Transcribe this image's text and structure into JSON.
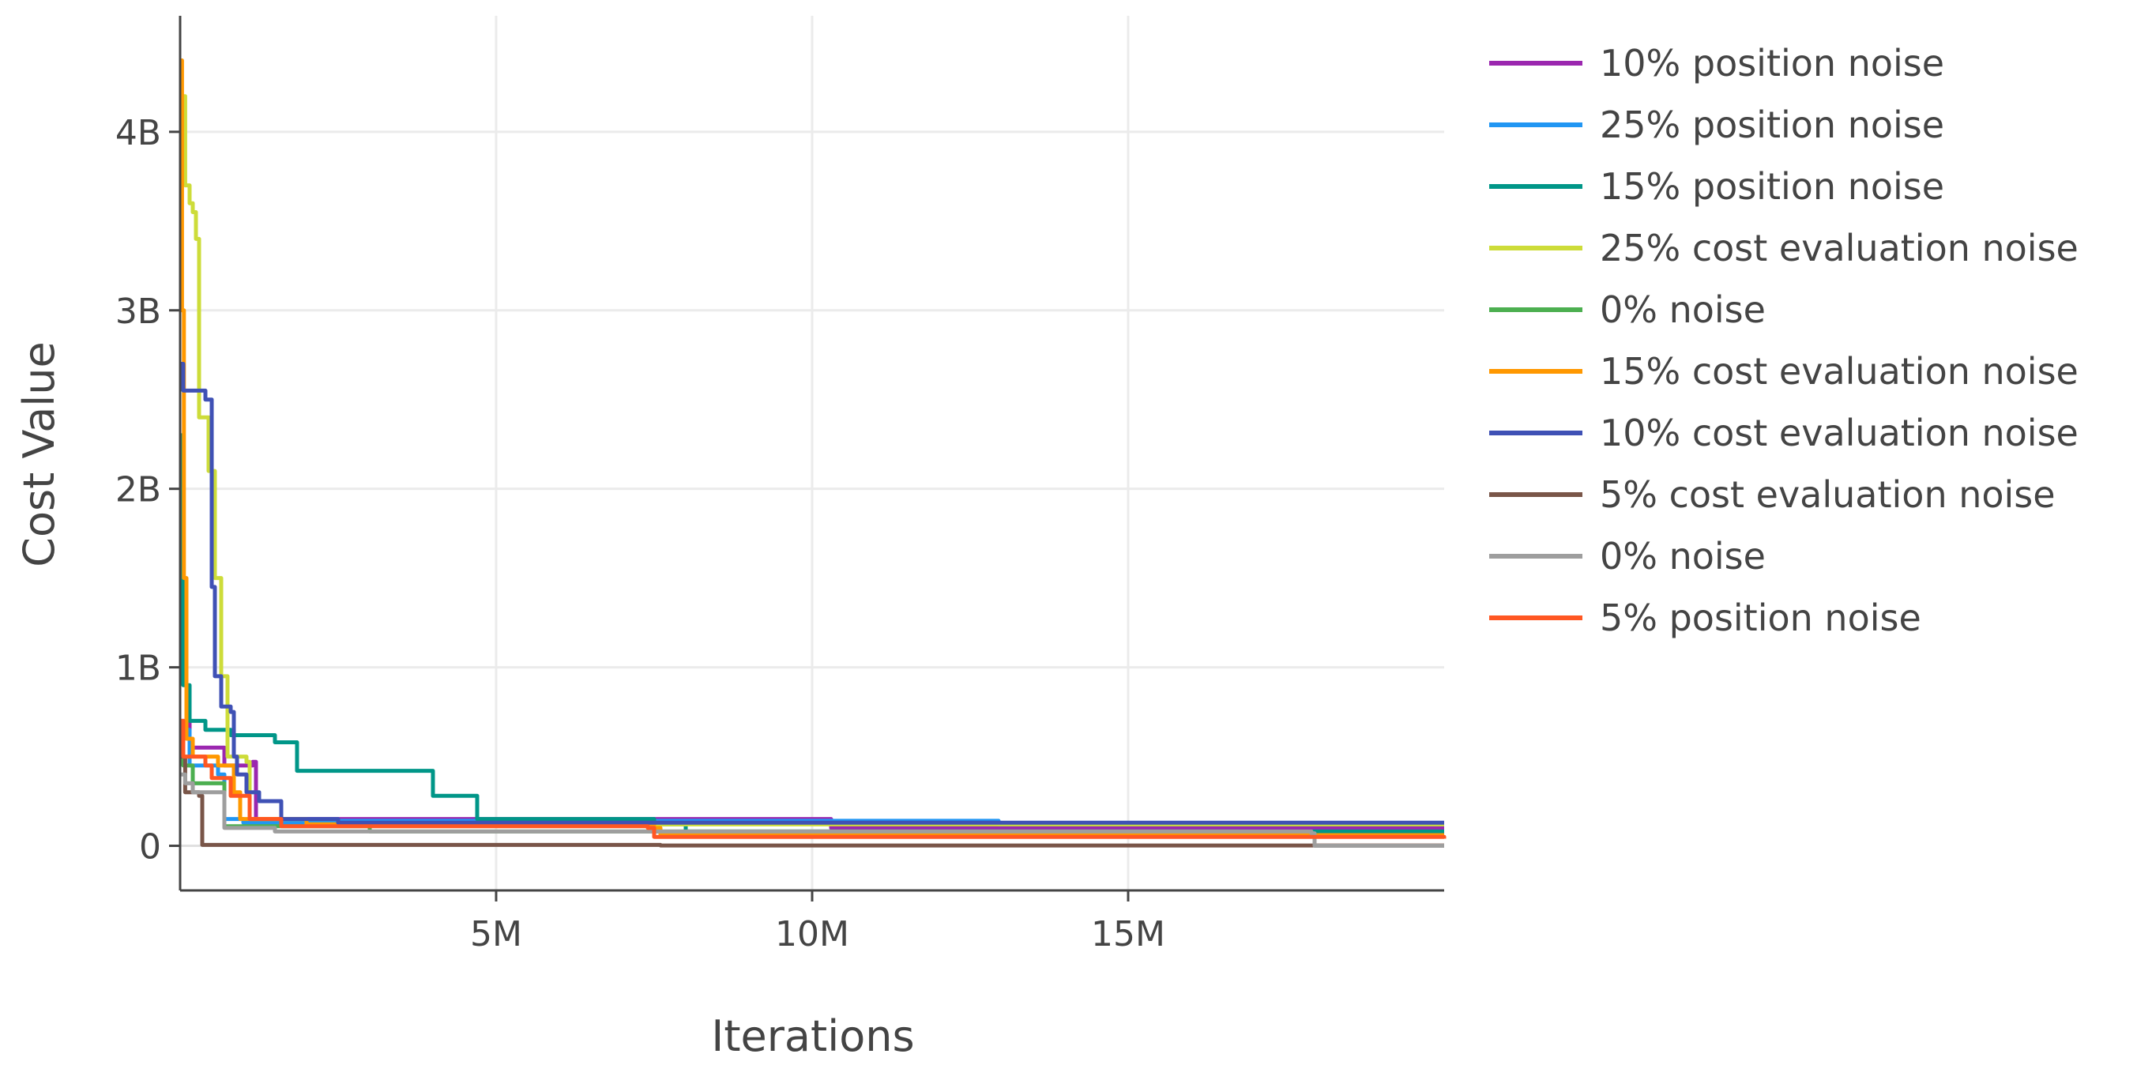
{
  "chart_data": {
    "type": "line",
    "title": "",
    "xlabel": "Iterations",
    "ylabel": "Cost Value",
    "xlim": [
      0,
      20000000
    ],
    "ylim": [
      -250000000,
      4650000000
    ],
    "x_ticks": [
      {
        "value": 5000000,
        "label": "5M"
      },
      {
        "value": 10000000,
        "label": "10M"
      },
      {
        "value": 15000000,
        "label": "15M"
      }
    ],
    "y_ticks": [
      {
        "value": 0,
        "label": "0"
      },
      {
        "value": 1000000000,
        "label": "1B"
      },
      {
        "value": 2000000000,
        "label": "2B"
      },
      {
        "value": 3000000000,
        "label": "3B"
      },
      {
        "value": 4000000000,
        "label": "4B"
      }
    ],
    "grid": true,
    "legend_position": "right",
    "series": [
      {
        "name": "10% position noise",
        "color": "#9b27af",
        "step": true,
        "points": [
          [
            0,
            700000000
          ],
          [
            150000,
            550000000
          ],
          [
            700000,
            450000000
          ],
          [
            1150000,
            470000000
          ],
          [
            1200000,
            150000000
          ],
          [
            2000000,
            150000000
          ],
          [
            10250000,
            150000000
          ],
          [
            10300000,
            100000000
          ],
          [
            20000000,
            100000000
          ]
        ]
      },
      {
        "name": "25% position noise",
        "color": "#2196f3",
        "step": true,
        "points": [
          [
            0,
            650000000
          ],
          [
            150000,
            450000000
          ],
          [
            600000,
            400000000
          ],
          [
            700000,
            150000000
          ],
          [
            1000000,
            130000000
          ],
          [
            2000000,
            140000000
          ],
          [
            12900000,
            140000000
          ],
          [
            12950000,
            120000000
          ],
          [
            20000000,
            120000000
          ]
        ]
      },
      {
        "name": "15% position noise",
        "color": "#009688",
        "step": true,
        "points": [
          [
            0,
            2300000000
          ],
          [
            50000,
            900000000
          ],
          [
            150000,
            700000000
          ],
          [
            400000,
            650000000
          ],
          [
            800000,
            620000000
          ],
          [
            1500000,
            580000000
          ],
          [
            1850000,
            420000000
          ],
          [
            4000000,
            280000000
          ],
          [
            4700000,
            150000000
          ],
          [
            7500000,
            120000000
          ],
          [
            8000000,
            80000000
          ],
          [
            20000000,
            80000000
          ]
        ]
      },
      {
        "name": "25% cost evaluation noise",
        "color": "#cddc39",
        "step": true,
        "points": [
          [
            0,
            4200000000
          ],
          [
            80000,
            3700000000
          ],
          [
            150000,
            3600000000
          ],
          [
            200000,
            3550000000
          ],
          [
            250000,
            3400000000
          ],
          [
            300000,
            2400000000
          ],
          [
            450000,
            2100000000
          ],
          [
            550000,
            1500000000
          ],
          [
            650000,
            950000000
          ],
          [
            750000,
            500000000
          ],
          [
            1050000,
            470000000
          ],
          [
            1100000,
            150000000
          ],
          [
            2000000,
            120000000
          ],
          [
            20000000,
            120000000
          ]
        ]
      },
      {
        "name": "0% noise",
        "color": "#4caf50",
        "step": true,
        "points": [
          [
            0,
            600000000
          ],
          [
            50000,
            450000000
          ],
          [
            200000,
            350000000
          ],
          [
            700000,
            110000000
          ],
          [
            3000000,
            80000000
          ],
          [
            16700000,
            80000000
          ],
          [
            16750000,
            60000000
          ],
          [
            20000000,
            60000000
          ]
        ]
      },
      {
        "name": "15% cost evaluation noise",
        "color": "#ff9800",
        "step": true,
        "points": [
          [
            0,
            4400000000
          ],
          [
            30000,
            3000000000
          ],
          [
            60000,
            1500000000
          ],
          [
            100000,
            600000000
          ],
          [
            200000,
            500000000
          ],
          [
            600000,
            450000000
          ],
          [
            850000,
            300000000
          ],
          [
            950000,
            150000000
          ],
          [
            2000000,
            120000000
          ],
          [
            7500000,
            100000000
          ],
          [
            7600000,
            60000000
          ],
          [
            20000000,
            60000000
          ]
        ]
      },
      {
        "name": "10% cost evaluation noise",
        "color": "#3f51b5",
        "step": true,
        "points": [
          [
            0,
            2700000000
          ],
          [
            50000,
            2550000000
          ],
          [
            400000,
            2500000000
          ],
          [
            500000,
            1450000000
          ],
          [
            550000,
            950000000
          ],
          [
            650000,
            780000000
          ],
          [
            800000,
            750000000
          ],
          [
            850000,
            500000000
          ],
          [
            900000,
            400000000
          ],
          [
            1050000,
            300000000
          ],
          [
            1250000,
            250000000
          ],
          [
            1600000,
            150000000
          ],
          [
            2500000,
            130000000
          ],
          [
            20000000,
            130000000
          ]
        ]
      },
      {
        "name": "5% cost evaluation noise",
        "color": "#795548",
        "step": true,
        "points": [
          [
            0,
            500000000
          ],
          [
            80000,
            300000000
          ],
          [
            300000,
            280000000
          ],
          [
            350000,
            5000000
          ],
          [
            7500000,
            5000000
          ],
          [
            7600000,
            2000000
          ],
          [
            20000000,
            2000000
          ]
        ]
      },
      {
        "name": "0% noise",
        "color": "#9e9e9e",
        "step": true,
        "points": [
          [
            0,
            400000000
          ],
          [
            80000,
            350000000
          ],
          [
            200000,
            300000000
          ],
          [
            700000,
            100000000
          ],
          [
            1500000,
            80000000
          ],
          [
            17900000,
            70000000
          ],
          [
            17950000,
            0
          ],
          [
            20000000,
            0
          ]
        ]
      },
      {
        "name": "5% position noise",
        "color": "#ff5722",
        "step": true,
        "points": [
          [
            0,
            700000000
          ],
          [
            50000,
            500000000
          ],
          [
            400000,
            450000000
          ],
          [
            500000,
            380000000
          ],
          [
            800000,
            280000000
          ],
          [
            1100000,
            150000000
          ],
          [
            1600000,
            110000000
          ],
          [
            7400000,
            100000000
          ],
          [
            7500000,
            50000000
          ],
          [
            20000000,
            40000000
          ]
        ]
      }
    ]
  }
}
